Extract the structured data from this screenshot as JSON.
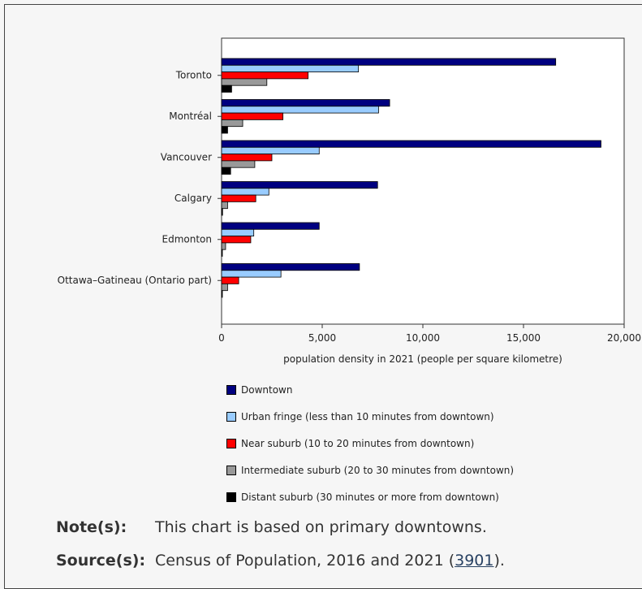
{
  "chart_data": {
    "type": "bar",
    "orientation": "horizontal",
    "categories": [
      "Toronto",
      "Montréal",
      "Vancouver",
      "Calgary",
      "Edmonton",
      "Ottawa–Gatineau (Ontario part)"
    ],
    "series": [
      {
        "name": "Downtown",
        "color": "#000080",
        "values": [
          16600,
          8350,
          18850,
          7750,
          4850,
          6850
        ]
      },
      {
        "name": "Urban fringe (less than 10 minutes from downtown)",
        "color": "#99ccff",
        "values": [
          6800,
          7800,
          4850,
          2350,
          1600,
          2950
        ]
      },
      {
        "name": "Near suburb (10 to 20 minutes from downtown)",
        "color": "#ff0000",
        "values": [
          4300,
          3050,
          2500,
          1700,
          1450,
          850
        ]
      },
      {
        "name": "Intermediate suburb (20 to 30 minutes from downtown)",
        "color": "#999999",
        "values": [
          2250,
          1050,
          1650,
          300,
          200,
          300
        ]
      },
      {
        "name": "Distant suburb (30 minutes or more from downtown)",
        "color": "#000000",
        "values": [
          500,
          300,
          450,
          50,
          30,
          20
        ]
      }
    ],
    "xlabel": "population density in 2021 (people per square kilometre)",
    "xlim": [
      0,
      20000
    ],
    "xticks": [
      0,
      5000,
      10000,
      15000,
      20000
    ],
    "xtick_labels": [
      "0",
      "5,000",
      "10,000",
      "15,000",
      "20,000"
    ],
    "grid": false,
    "legend_position": "bottom"
  },
  "notes": {
    "note_label": "Note(s):",
    "note_text": "This chart is based on primary downtowns.",
    "source_label": "Source(s):",
    "source_text_before": "Census of Population, 2016 and 2021 (",
    "source_link": "3901",
    "source_text_after": ")."
  }
}
